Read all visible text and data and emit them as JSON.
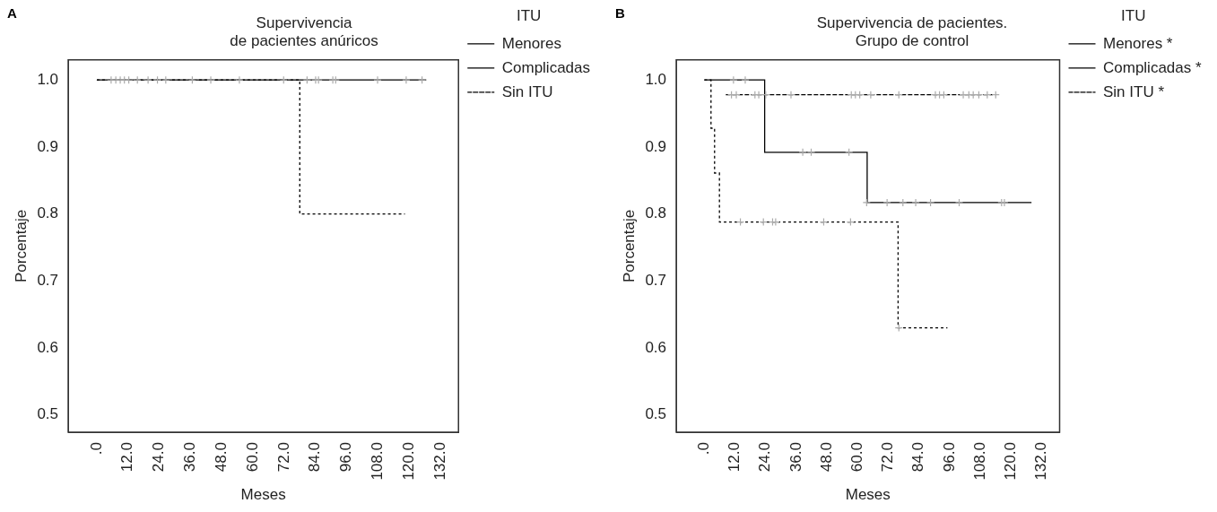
{
  "chart_data": [
    {
      "type": "step",
      "title": "Supervivencia\nde pacientes anúricos",
      "xlabel": "Meses",
      "ylabel": "Porcentaje",
      "legend_title": "ITU",
      "legend": "right",
      "grid": false,
      "annotations": [
        "A"
      ],
      "xlim": [
        -11,
        139
      ],
      "xticks": [
        {
          "value": 0,
          "label": ".0"
        },
        {
          "value": 12,
          "label": "12.0"
        },
        {
          "value": 24,
          "label": "24.0"
        },
        {
          "value": 36,
          "label": "36.0"
        },
        {
          "value": 48,
          "label": "48.0"
        },
        {
          "value": 60,
          "label": "60.0"
        },
        {
          "value": 72,
          "label": "72.0"
        },
        {
          "value": 84,
          "label": "84.0"
        },
        {
          "value": 96,
          "label": "96.0"
        },
        {
          "value": 108,
          "label": "108.0"
        },
        {
          "value": 120,
          "label": "120.0"
        },
        {
          "value": 132,
          "label": "132.0"
        }
      ],
      "ylim": [
        0.474,
        1.03
      ],
      "yticks": [
        0.5,
        0.6,
        0.7,
        0.8,
        0.9,
        {
          "value": 1,
          "label": "1.0"
        }
      ],
      "series": [
        {
          "name": "Menores",
          "color": "#000000",
          "line_style": "solid",
          "marker": "none",
          "x": [
            0,
            126.6
          ],
          "values": [
            1,
            1
          ]
        },
        {
          "name": "Complicadas",
          "color": "#000000",
          "line_style": "dotted",
          "marker": "none",
          "x": [
            0,
            78,
            118.4
          ],
          "values": [
            1,
            0.8,
            0.8
          ]
        },
        {
          "name": "Sin ITU",
          "color": "#000000",
          "line_style": "dashed",
          "marker": "none"
        },
        {
          "type": "scatter",
          "color": "#aaaaaa",
          "marker": "cross",
          "x": [
            5.5,
            7.3,
            9.0,
            10.6,
            12.3,
            15.6,
            19.7,
            23.3,
            26.5,
            36.7,
            43.8,
            54.8,
            71.8,
            80.8,
            84.1,
            85.2,
            90.7,
            91.8,
            107.9,
            118.9,
            125
          ],
          "values": [
            1,
            1,
            1,
            1,
            1,
            1,
            1,
            1,
            1,
            1,
            1,
            1,
            1,
            1,
            1,
            1,
            1,
            1,
            1,
            1,
            1
          ]
        }
      ]
    },
    {
      "type": "step",
      "title": "Supervivencia de pacientes.\nGrupo de control",
      "xlabel": "Meses",
      "ylabel": "Porcentaje",
      "legend_title": "ITU",
      "legend": "right",
      "grid": false,
      "annotations": [
        "B"
      ],
      "xlim": [
        -11,
        139
      ],
      "xticks": [
        {
          "value": 0,
          "label": ".0"
        },
        {
          "value": 12,
          "label": "12.0"
        },
        {
          "value": 24,
          "label": "24.0"
        },
        {
          "value": 36,
          "label": "36.0"
        },
        {
          "value": 48,
          "label": "48.0"
        },
        {
          "value": 60,
          "label": "60.0"
        },
        {
          "value": 72,
          "label": "72.0"
        },
        {
          "value": 84,
          "label": "84.0"
        },
        {
          "value": 96,
          "label": "96.0"
        },
        {
          "value": 108,
          "label": "108.0"
        },
        {
          "value": 120,
          "label": "120.0"
        },
        {
          "value": 132,
          "label": "132.0"
        }
      ],
      "ylim": [
        0.474,
        1.03
      ],
      "yticks": [
        0.5,
        0.6,
        0.7,
        0.8,
        0.9,
        {
          "value": 1,
          "label": "1.0"
        }
      ],
      "series": [
        {
          "name": "Menores *",
          "color": "#000000",
          "line_style": "solid",
          "marker": "none",
          "x": [
            0,
            23.6,
            63.7,
            128
          ],
          "values": [
            1,
            0.892,
            0.817,
            0.817
          ]
        },
        {
          "name": "Complicadas *",
          "color": "#000000",
          "line_style": "dotted",
          "marker": "none",
          "x": [
            0,
            2.6,
            4.0,
            5.9,
            75.8,
            95.1
          ],
          "values": [
            1,
            0.928,
            0.861,
            0.788,
            0.63,
            0.63
          ]
        },
        {
          "name": "Sin ITU *",
          "color": "#000000",
          "line_style": "dashed",
          "marker": "none",
          "x": [
            8.4,
            112.8
          ],
          "values": [
            0.978,
            0.978
          ]
        },
        {
          "type": "scatter",
          "color": "#aaaaaa",
          "marker": "cross",
          "x": [
            11.4,
            16.0,
            38.5,
            41.8,
            56.6,
            63.5,
            71.5,
            77.7,
            82.7,
            88.5,
            99.7,
            116.3,
            117.4,
            10.6,
            12.5,
            19.8,
            21.3,
            24.0,
            33.9,
            57.5,
            59.1,
            60.8,
            65.1,
            76.1,
            90.4,
            92.0,
            93.7,
            101.3,
            103.5,
            105.2,
            107.4,
            110.7,
            114.0,
            14.1,
            23.1,
            26.7,
            27.9,
            46.7,
            57.2,
            76.1
          ],
          "values": [
            1,
            1,
            0.892,
            0.892,
            0.892,
            0.817,
            0.817,
            0.817,
            0.817,
            0.817,
            0.817,
            0.817,
            0.817,
            0.978,
            0.978,
            0.978,
            0.978,
            0.978,
            0.978,
            0.978,
            0.978,
            0.978,
            0.978,
            0.978,
            0.978,
            0.978,
            0.978,
            0.978,
            0.978,
            0.978,
            0.978,
            0.978,
            0.978,
            0.788,
            0.788,
            0.788,
            0.788,
            0.788,
            0.788,
            0.63
          ]
        }
      ]
    }
  ]
}
